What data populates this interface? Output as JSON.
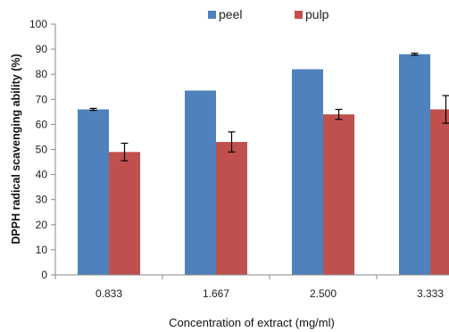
{
  "chart_data": {
    "type": "bar",
    "title": "",
    "xlabel": "Concentration of extract (mg/ml)",
    "ylabel": "DPPH radical scavenging ability (%)",
    "categories": [
      "0.833",
      "1.667",
      "2.500",
      "3.333"
    ],
    "ylim": [
      0,
      100
    ],
    "yticks": [
      0,
      10,
      20,
      30,
      40,
      50,
      60,
      70,
      80,
      90,
      100
    ],
    "grid": false,
    "legend_position": "top",
    "series": [
      {
        "name": "peel",
        "color": "#4F81BD",
        "values": [
          66,
          73.5,
          82,
          88
        ],
        "errors": [
          0.4,
          null,
          null,
          0.4
        ]
      },
      {
        "name": "pulp",
        "color": "#C0504D",
        "values": [
          49,
          53,
          64,
          66
        ],
        "errors": [
          3.5,
          4,
          2,
          5.5
        ]
      }
    ]
  }
}
